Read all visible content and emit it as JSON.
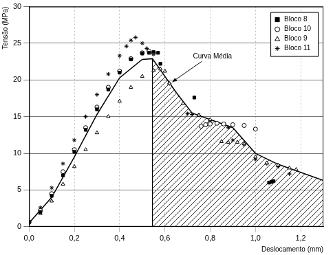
{
  "chart_data": {
    "type": "scatter",
    "x_label": "Deslocamento (mm)",
    "y_label": "Tensão (MPa)",
    "xlim": [
      0,
      1.3
    ],
    "ylim": [
      0,
      30
    ],
    "xticks": [
      {
        "value": 0,
        "label": "0,0"
      },
      {
        "value": 0.2,
        "label": "0,2"
      },
      {
        "value": 0.4,
        "label": "0,4"
      },
      {
        "value": 0.6,
        "label": "0,6"
      },
      {
        "value": 0.8,
        "label": "0,8"
      },
      {
        "value": 1.0,
        "label": "1,0"
      },
      {
        "value": 1.2,
        "label": "1,2"
      }
    ],
    "yticks": [
      0,
      5,
      10,
      15,
      20,
      25,
      30
    ],
    "grid": true,
    "legend": "upper right",
    "series": [
      {
        "name": "Bloco 8",
        "color": "#000000",
        "marker": "filled_square",
        "x": [
          0,
          0.05,
          0.1,
          0.15,
          0.2,
          0.25,
          0.3,
          0.35,
          0.4,
          0.45,
          0.5,
          0.53,
          0.55,
          0.57,
          0.58,
          0.73,
          1.06,
          1.07,
          1.08
        ],
        "values": [
          0.6,
          2,
          4.2,
          7,
          10.2,
          13.2,
          16,
          18.7,
          21,
          22.8,
          23.6,
          23.7,
          23.8,
          23.7,
          22.2,
          17.6,
          6,
          6.1,
          6.2
        ]
      },
      {
        "name": "Bloco 10",
        "color": "#000000",
        "marker": "open_circle",
        "x": [
          0,
          0.05,
          0.1,
          0.15,
          0.2,
          0.25,
          0.3,
          0.35,
          0.4,
          0.45,
          0.5,
          0.53,
          0.55,
          0.76,
          0.78,
          0.8,
          0.83,
          0.86,
          0.9,
          0.95,
          1.0
        ],
        "values": [
          0.6,
          2.2,
          4.5,
          7.5,
          10.5,
          13.5,
          16.3,
          19,
          21.2,
          22.9,
          23.7,
          23.9,
          23.7,
          13.7,
          13.9,
          14,
          14.1,
          14,
          13.9,
          13.8,
          13.3
        ]
      },
      {
        "name": "Bloco 9",
        "color": "#000000",
        "marker": "open_triangle",
        "x": [
          0,
          0.05,
          0.1,
          0.15,
          0.2,
          0.25,
          0.3,
          0.35,
          0.4,
          0.45,
          0.5,
          0.55,
          0.58,
          0.6,
          0.62,
          0.68,
          0.75,
          0.8,
          0.85,
          0.88,
          0.92,
          0.95,
          1.0,
          1.05,
          1.1,
          1.15,
          1.18
        ],
        "values": [
          0.6,
          1.8,
          3.5,
          5.8,
          8.2,
          10.5,
          12.8,
          15,
          17.1,
          19,
          20.5,
          21.3,
          21.5,
          21.2,
          19.5,
          16.8,
          15.2,
          14.6,
          11.6,
          11.5,
          11.5,
          11.3,
          9.5,
          8.7,
          8.4,
          8,
          7.8
        ]
      },
      {
        "name": "Bloco 11",
        "color": "#000000",
        "marker": "asterisk",
        "x": [
          0,
          0.05,
          0.1,
          0.15,
          0.2,
          0.25,
          0.3,
          0.35,
          0.4,
          0.43,
          0.45,
          0.47,
          0.5,
          0.52,
          0.55,
          0.62,
          0.7,
          0.72,
          0.75,
          0.8,
          0.88,
          0.9,
          0.95,
          1.0,
          1.05,
          1.1,
          1.15
        ],
        "values": [
          0.7,
          2.6,
          5.3,
          8.6,
          11.8,
          15,
          18,
          20.8,
          23.3,
          24.6,
          25.4,
          25.8,
          25,
          24.3,
          23.5,
          19.5,
          15.4,
          15.3,
          15.2,
          14.3,
          13.5,
          11.8,
          11.2,
          9.2,
          8.6,
          8.2,
          7.2
        ]
      },
      {
        "name": "Curva Média",
        "color": "#000000",
        "type": "line",
        "marker": "none",
        "line_style": "solid",
        "x": [
          0,
          0.1,
          0.2,
          0.3,
          0.4,
          0.5,
          0.545,
          0.65,
          0.72,
          0.9,
          1.0,
          1.1,
          1.3
        ],
        "values": [
          0.5,
          4,
          9.5,
          15.3,
          20.3,
          22.8,
          22.9,
          18.3,
          15.5,
          13.5,
          10,
          8.5,
          6.3
        ]
      }
    ]
  }
}
